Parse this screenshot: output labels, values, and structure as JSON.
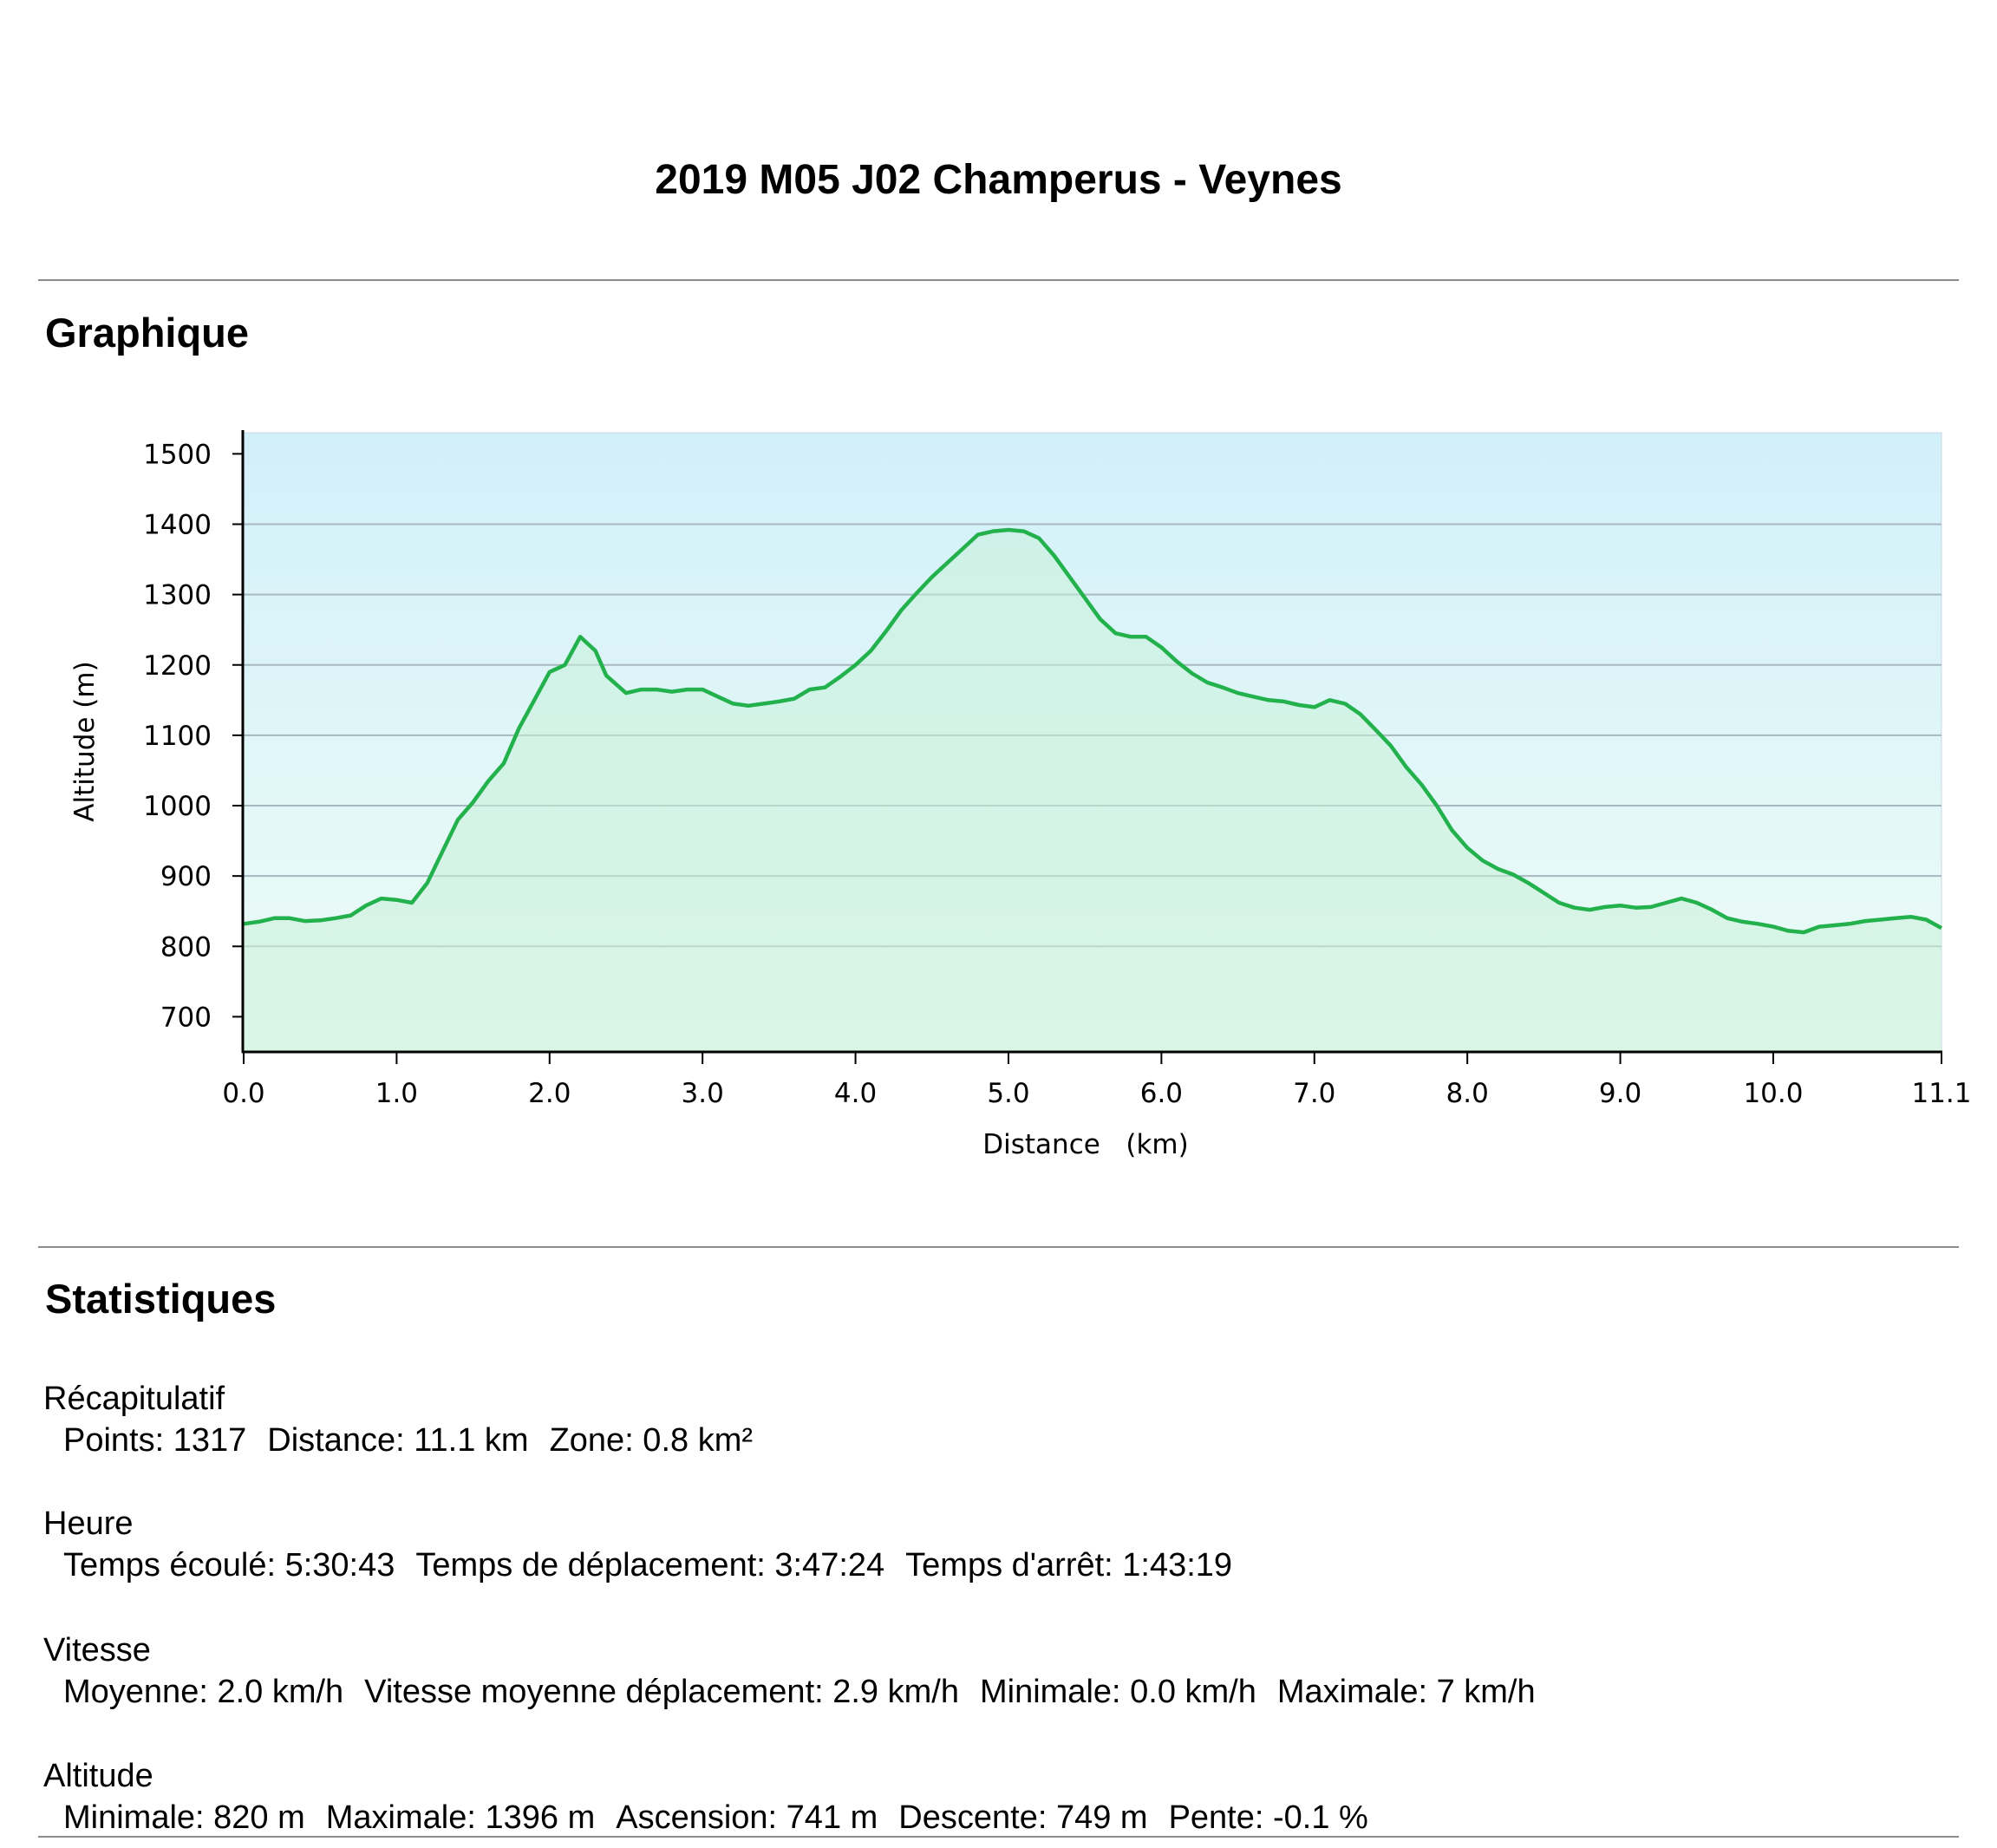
{
  "title": "2019 M05 J02 Champerus - Veynes",
  "sections": {
    "chart_heading": "Graphique",
    "stats_heading": "Statistiques"
  },
  "colors": {
    "line": "#22b14c",
    "fill_top": "#d2f0fa",
    "fill_bottom": "#eefcf6",
    "area_fill": "#c8f0d8",
    "grid": "#a8b8c0"
  },
  "chart_data": {
    "type": "area",
    "title": "",
    "xlabel": "Distance   (km)",
    "ylabel": "Altitude (m)",
    "xlim": [
      0,
      11.1
    ],
    "ylim": [
      650,
      1530
    ],
    "x_ticks": [
      "0.0",
      "1.0",
      "2.0",
      "3.0",
      "4.0",
      "5.0",
      "6.0",
      "7.0",
      "8.0",
      "9.0",
      "10.0",
      "11.1"
    ],
    "y_ticks": [
      "700",
      "800",
      "900",
      "1000",
      "1100",
      "1200",
      "1300",
      "1400",
      "1500"
    ],
    "grid": true,
    "series": [
      {
        "x": [
          0.0,
          0.1,
          0.2,
          0.3,
          0.4,
          0.5,
          0.6,
          0.7,
          0.8,
          0.9,
          1.0,
          1.1,
          1.2,
          1.3,
          1.4,
          1.5,
          1.6,
          1.7,
          1.8,
          1.9,
          2.0,
          2.1,
          2.2,
          2.3,
          2.37,
          2.5,
          2.6,
          2.7,
          2.8,
          2.9,
          3.0,
          3.1,
          3.2,
          3.3,
          3.4,
          3.5,
          3.6,
          3.7,
          3.8,
          3.9,
          4.0,
          4.1,
          4.2,
          4.3,
          4.4,
          4.5,
          4.6,
          4.7,
          4.8,
          4.9,
          5.0,
          5.1,
          5.2,
          5.3,
          5.4,
          5.5,
          5.6,
          5.7,
          5.8,
          5.9,
          6.0,
          6.1,
          6.2,
          6.3,
          6.4,
          6.5,
          6.6,
          6.7,
          6.8,
          6.9,
          7.0,
          7.1,
          7.2,
          7.3,
          7.4,
          7.5,
          7.6,
          7.7,
          7.8,
          7.9,
          8.0,
          8.1,
          8.2,
          8.3,
          8.4,
          8.5,
          8.6,
          8.7,
          8.8,
          8.9,
          9.0,
          9.1,
          9.2,
          9.3,
          9.4,
          9.5,
          9.6,
          9.7,
          9.8,
          9.9,
          10.0,
          10.1,
          10.2,
          10.3,
          10.4,
          10.5,
          10.6,
          10.7,
          10.8,
          10.9,
          11.0,
          11.1
        ],
        "values": [
          832,
          835,
          840,
          840,
          836,
          837,
          840,
          844,
          858,
          868,
          866,
          862,
          890,
          935,
          980,
          1005,
          1035,
          1060,
          1110,
          1150,
          1190,
          1200,
          1240,
          1220,
          1185,
          1160,
          1165,
          1165,
          1162,
          1165,
          1165,
          1155,
          1145,
          1142,
          1145,
          1148,
          1152,
          1165,
          1168,
          1183,
          1200,
          1220,
          1248,
          1278,
          1302,
          1325,
          1345,
          1365,
          1385,
          1390,
          1392,
          1390,
          1380,
          1355,
          1325,
          1295,
          1265,
          1245,
          1240,
          1240,
          1225,
          1205,
          1188,
          1175,
          1168,
          1160,
          1155,
          1150,
          1148,
          1143,
          1140,
          1150,
          1145,
          1130,
          1108,
          1085,
          1055,
          1030,
          1000,
          965,
          940,
          922,
          910,
          902,
          890,
          876,
          862,
          855,
          852,
          856,
          858,
          855,
          856,
          862,
          868,
          862,
          852,
          840,
          835,
          832,
          828,
          822,
          820,
          828,
          830,
          832,
          836,
          838,
          840,
          842,
          838,
          826
        ]
      }
    ]
  },
  "stats": [
    {
      "heading": "Récapitulatif",
      "items": [
        "Points: 1317",
        "Distance: 11.1 km",
        "Zone: 0.8 km²"
      ]
    },
    {
      "heading": "Heure",
      "items": [
        "Temps écoulé: 5:30:43",
        "Temps de déplacement: 3:47:24",
        "Temps d'arrêt: 1:43:19"
      ]
    },
    {
      "heading": "Vitesse",
      "items": [
        "Moyenne: 2.0 km/h",
        "Vitesse moyenne déplacement: 2.9 km/h",
        "Minimale: 0.0 km/h",
        "Maximale: 7 km/h"
      ]
    },
    {
      "heading": "Altitude",
      "items": [
        "Minimale: 820 m",
        "Maximale: 1396 m",
        "Ascension: 741 m",
        "Descente: 749 m",
        "Pente: -0.1 %"
      ]
    }
  ]
}
